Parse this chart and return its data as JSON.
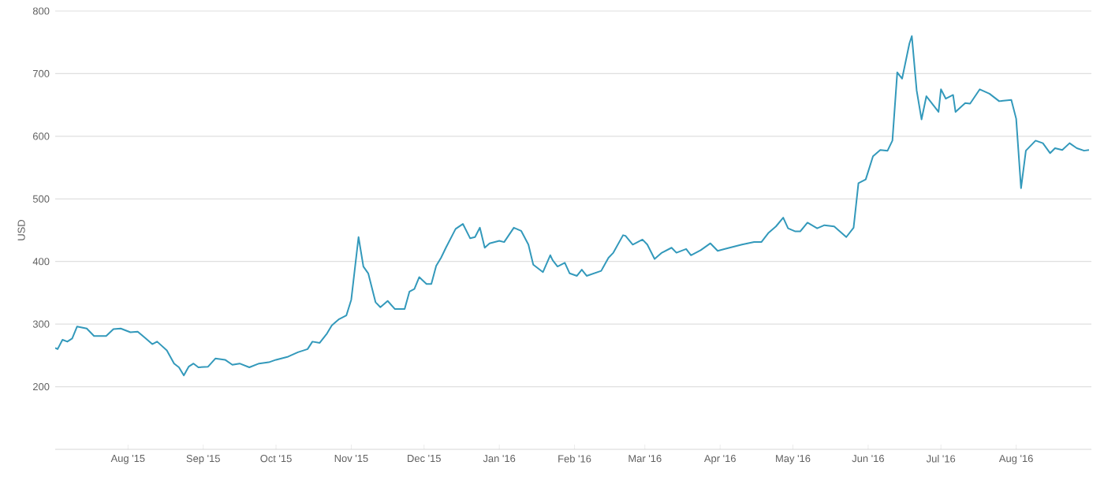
{
  "chart_data": {
    "type": "line",
    "ylabel": "USD",
    "color": "#3399bb",
    "grid": "y",
    "xlim": [
      "2015-07-02",
      "2016-09-01"
    ],
    "ylim": [
      100,
      800
    ],
    "yticks": [
      200,
      300,
      400,
      500,
      600,
      700,
      800
    ],
    "xticks": [
      {
        "value": "2015-08-01",
        "label": "Aug '15"
      },
      {
        "value": "2015-09-01",
        "label": "Sep '15"
      },
      {
        "value": "2015-10-01",
        "label": "Oct '15"
      },
      {
        "value": "2015-11-01",
        "label": "Nov '15"
      },
      {
        "value": "2015-12-01",
        "label": "Dec '15"
      },
      {
        "value": "2016-01-01",
        "label": "Jan '16"
      },
      {
        "value": "2016-02-01",
        "label": "Feb '16"
      },
      {
        "value": "2016-03-01",
        "label": "Mar '16"
      },
      {
        "value": "2016-04-01",
        "label": "Apr '16"
      },
      {
        "value": "2016-05-01",
        "label": "May '16"
      },
      {
        "value": "2016-06-01",
        "label": "Jun '16"
      },
      {
        "value": "2016-07-01",
        "label": "Jul '16"
      },
      {
        "value": "2016-08-01",
        "label": "Aug '16"
      }
    ],
    "x": [
      "2015-07-02",
      "2015-07-03",
      "2015-07-05",
      "2015-07-07",
      "2015-07-09",
      "2015-07-11",
      "2015-07-15",
      "2015-07-18",
      "2015-07-21",
      "2015-07-23",
      "2015-07-26",
      "2015-07-29",
      "2015-08-02",
      "2015-08-05",
      "2015-08-08",
      "2015-08-11",
      "2015-08-13",
      "2015-08-17",
      "2015-08-20",
      "2015-08-22",
      "2015-08-24",
      "2015-08-26",
      "2015-08-28",
      "2015-08-30",
      "2015-09-03",
      "2015-09-06",
      "2015-09-10",
      "2015-09-13",
      "2015-09-16",
      "2015-09-20",
      "2015-09-24",
      "2015-09-28",
      "2015-10-01",
      "2015-10-06",
      "2015-10-10",
      "2015-10-14",
      "2015-10-16",
      "2015-10-19",
      "2015-10-22",
      "2015-10-24",
      "2015-10-27",
      "2015-10-30",
      "2015-11-01",
      "2015-11-04",
      "2015-11-06",
      "2015-11-08",
      "2015-11-11",
      "2015-11-13",
      "2015-11-16",
      "2015-11-19",
      "2015-11-23",
      "2015-11-25",
      "2015-11-27",
      "2015-11-29",
      "2015-12-02",
      "2015-12-04",
      "2015-12-06",
      "2015-12-08",
      "2015-12-10",
      "2015-12-14",
      "2015-12-17",
      "2015-12-20",
      "2015-12-22",
      "2015-12-24",
      "2015-12-26",
      "2015-12-28",
      "2016-01-01",
      "2016-01-03",
      "2016-01-07",
      "2016-01-10",
      "2016-01-13",
      "2016-01-15",
      "2016-01-19",
      "2016-01-22",
      "2016-01-23",
      "2016-01-25",
      "2016-01-28",
      "2016-01-30",
      "2016-02-02",
      "2016-02-04",
      "2016-02-06",
      "2016-02-12",
      "2016-02-15",
      "2016-02-17",
      "2016-02-21",
      "2016-02-22",
      "2016-02-25",
      "2016-02-29",
      "2016-03-02",
      "2016-03-05",
      "2016-03-08",
      "2016-03-12",
      "2016-03-14",
      "2016-03-18",
      "2016-03-20",
      "2016-03-24",
      "2016-03-28",
      "2016-03-31",
      "2016-04-03",
      "2016-04-10",
      "2016-04-15",
      "2016-04-18",
      "2016-04-21",
      "2016-04-24",
      "2016-04-27",
      "2016-04-29",
      "2016-05-02",
      "2016-05-04",
      "2016-05-07",
      "2016-05-11",
      "2016-05-14",
      "2016-05-18",
      "2016-05-23",
      "2016-05-26",
      "2016-05-28",
      "2016-05-31",
      "2016-06-03",
      "2016-06-06",
      "2016-06-09",
      "2016-06-11",
      "2016-06-13",
      "2016-06-15",
      "2016-06-18",
      "2016-06-19",
      "2016-06-21",
      "2016-06-23",
      "2016-06-25",
      "2016-06-30",
      "2016-07-01",
      "2016-07-03",
      "2016-07-06",
      "2016-07-07",
      "2016-07-11",
      "2016-07-13",
      "2016-07-17",
      "2016-07-21",
      "2016-07-25",
      "2016-07-30",
      "2016-08-01",
      "2016-08-03",
      "2016-08-05",
      "2016-08-09",
      "2016-08-12",
      "2016-08-15",
      "2016-08-17",
      "2016-08-20",
      "2016-08-23",
      "2016-08-26",
      "2016-08-29",
      "2016-08-31"
    ],
    "values": [
      262,
      260,
      275,
      272,
      277,
      296,
      293,
      281,
      281,
      281,
      292,
      293,
      287,
      288,
      278,
      268,
      272,
      258,
      237,
      231,
      218,
      232,
      237,
      231,
      232,
      245,
      243,
      235,
      237,
      231,
      237,
      239,
      243,
      248,
      255,
      260,
      272,
      270,
      285,
      298,
      308,
      314,
      339,
      439,
      392,
      381,
      335,
      327,
      337,
      324,
      324,
      352,
      356,
      375,
      364,
      364,
      393,
      406,
      422,
      452,
      460,
      437,
      439,
      454,
      422,
      429,
      433,
      431,
      454,
      449,
      427,
      395,
      383,
      410,
      402,
      392,
      398,
      381,
      377,
      387,
      377,
      385,
      406,
      414,
      442,
      441,
      427,
      435,
      427,
      404,
      414,
      422,
      414,
      420,
      410,
      418,
      429,
      417,
      420,
      427,
      431,
      431,
      446,
      456,
      470,
      453,
      448,
      448,
      462,
      453,
      458,
      456,
      439,
      454,
      525,
      531,
      568,
      578,
      577,
      593,
      702,
      692,
      748,
      760,
      673,
      627,
      664,
      639,
      675,
      660,
      666,
      639,
      653,
      652,
      675,
      668,
      656,
      658,
      628,
      517,
      577,
      593,
      589,
      573,
      581,
      578,
      589,
      581,
      577,
      578
    ]
  }
}
